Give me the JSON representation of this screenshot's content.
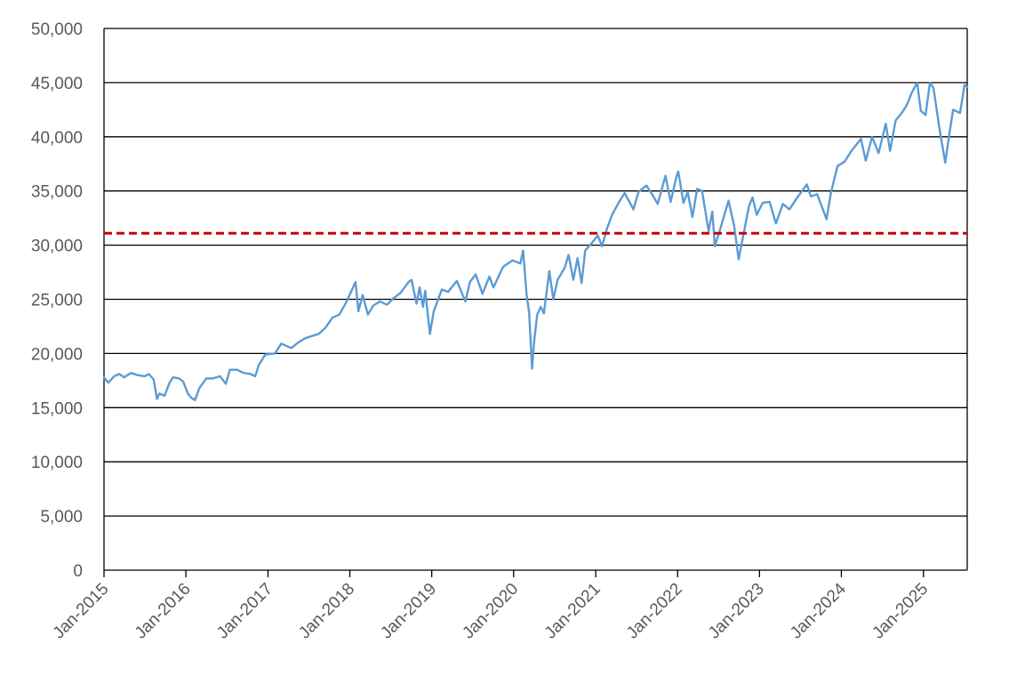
{
  "chart_data": {
    "type": "line",
    "title": "",
    "xlabel": "",
    "ylabel": "",
    "ylim": [
      0,
      50000
    ],
    "yticks": [
      "0",
      "5,000",
      "10,000",
      "15,000",
      "20,000",
      "25,000",
      "30,000",
      "35,000",
      "40,000",
      "45,000",
      "50,000"
    ],
    "xticks": [
      "Jan-2015",
      "Jan-2016",
      "Jan-2017",
      "Jan-2018",
      "Jan-2019",
      "Jan-2020",
      "Jan-2021",
      "Jan-2022",
      "Jan-2023",
      "Jan-2024",
      "Jan-2025"
    ],
    "xlim": [
      "2015-01-01",
      "2025-07-15"
    ],
    "grid": "horizontal",
    "legend": "none",
    "series": [
      {
        "color": "#5b9bd5",
        "style": "solid",
        "points": [
          [
            "2015-01-01",
            17800
          ],
          [
            "2015-01-20",
            17300
          ],
          [
            "2015-02-15",
            17900
          ],
          [
            "2015-03-10",
            18100
          ],
          [
            "2015-04-01",
            17800
          ],
          [
            "2015-05-01",
            18200
          ],
          [
            "2015-06-01",
            18000
          ],
          [
            "2015-07-01",
            17900
          ],
          [
            "2015-07-20",
            18100
          ],
          [
            "2015-08-10",
            17600
          ],
          [
            "2015-08-25",
            15800
          ],
          [
            "2015-09-05",
            16300
          ],
          [
            "2015-09-28",
            16100
          ],
          [
            "2015-10-20",
            17300
          ],
          [
            "2015-11-05",
            17800
          ],
          [
            "2015-12-01",
            17700
          ],
          [
            "2015-12-20",
            17400
          ],
          [
            "2016-01-10",
            16300
          ],
          [
            "2016-01-25",
            15900
          ],
          [
            "2016-02-11",
            15700
          ],
          [
            "2016-03-01",
            16800
          ],
          [
            "2016-04-01",
            17700
          ],
          [
            "2016-05-01",
            17700
          ],
          [
            "2016-06-01",
            17900
          ],
          [
            "2016-06-27",
            17200
          ],
          [
            "2016-07-15",
            18500
          ],
          [
            "2016-08-15",
            18500
          ],
          [
            "2016-09-15",
            18200
          ],
          [
            "2016-10-15",
            18100
          ],
          [
            "2016-11-05",
            17900
          ],
          [
            "2016-11-20",
            18900
          ],
          [
            "2016-12-20",
            19900
          ],
          [
            "2017-02-01",
            20000
          ],
          [
            "2017-03-01",
            20900
          ],
          [
            "2017-04-15",
            20500
          ],
          [
            "2017-05-15",
            21000
          ],
          [
            "2017-06-15",
            21400
          ],
          [
            "2017-07-15",
            21600
          ],
          [
            "2017-08-15",
            21800
          ],
          [
            "2017-09-15",
            22400
          ],
          [
            "2017-10-15",
            23300
          ],
          [
            "2017-11-15",
            23600
          ],
          [
            "2017-12-15",
            24700
          ],
          [
            "2018-01-26",
            26600
          ],
          [
            "2018-02-08",
            23900
          ],
          [
            "2018-02-27",
            25400
          ],
          [
            "2018-03-22",
            23600
          ],
          [
            "2018-04-15",
            24400
          ],
          [
            "2018-05-15",
            24800
          ],
          [
            "2018-06-15",
            24500
          ],
          [
            "2018-07-15",
            25100
          ],
          [
            "2018-08-15",
            25600
          ],
          [
            "2018-09-20",
            26600
          ],
          [
            "2018-10-03",
            26800
          ],
          [
            "2018-10-25",
            24600
          ],
          [
            "2018-11-08",
            26100
          ],
          [
            "2018-11-23",
            24300
          ],
          [
            "2018-12-03",
            25800
          ],
          [
            "2018-12-24",
            21800
          ],
          [
            "2019-01-10",
            23900
          ],
          [
            "2019-02-15",
            25900
          ],
          [
            "2019-03-15",
            25700
          ],
          [
            "2019-04-23",
            26700
          ],
          [
            "2019-05-31",
            24800
          ],
          [
            "2019-06-20",
            26600
          ],
          [
            "2019-07-16",
            27300
          ],
          [
            "2019-08-15",
            25500
          ],
          [
            "2019-09-15",
            27100
          ],
          [
            "2019-10-03",
            26100
          ],
          [
            "2019-11-15",
            28000
          ],
          [
            "2019-12-27",
            28600
          ],
          [
            "2020-01-31",
            28300
          ],
          [
            "2020-02-12",
            29500
          ],
          [
            "2020-02-28",
            25400
          ],
          [
            "2020-03-10",
            23800
          ],
          [
            "2020-03-23",
            18600
          ],
          [
            "2020-04-01",
            21000
          ],
          [
            "2020-04-15",
            23600
          ],
          [
            "2020-05-01",
            24300
          ],
          [
            "2020-05-15",
            23700
          ],
          [
            "2020-06-08",
            27600
          ],
          [
            "2020-06-26",
            25000
          ],
          [
            "2020-07-15",
            26800
          ],
          [
            "2020-08-15",
            27900
          ],
          [
            "2020-09-02",
            29100
          ],
          [
            "2020-09-23",
            26800
          ],
          [
            "2020-10-12",
            28800
          ],
          [
            "2020-10-30",
            26500
          ],
          [
            "2020-11-15",
            29500
          ],
          [
            "2020-12-15",
            30200
          ],
          [
            "2021-01-10",
            30900
          ],
          [
            "2021-01-29",
            29900
          ],
          [
            "2021-02-20",
            31500
          ],
          [
            "2021-03-15",
            32800
          ],
          [
            "2021-04-15",
            34000
          ],
          [
            "2021-05-10",
            34800
          ],
          [
            "2021-06-18",
            33300
          ],
          [
            "2021-07-10",
            34900
          ],
          [
            "2021-08-15",
            35500
          ],
          [
            "2021-09-15",
            34500
          ],
          [
            "2021-10-04",
            33800
          ],
          [
            "2021-11-08",
            36400
          ],
          [
            "2021-12-01",
            34000
          ],
          [
            "2021-12-29",
            36500
          ],
          [
            "2022-01-04",
            36800
          ],
          [
            "2022-01-27",
            33900
          ],
          [
            "2022-02-15",
            34900
          ],
          [
            "2022-03-08",
            32600
          ],
          [
            "2022-03-29",
            35200
          ],
          [
            "2022-04-20",
            35000
          ],
          [
            "2022-05-19",
            31300
          ],
          [
            "2022-06-05",
            33100
          ],
          [
            "2022-06-16",
            29900
          ],
          [
            "2022-07-10",
            31500
          ],
          [
            "2022-08-16",
            34100
          ],
          [
            "2022-09-10",
            31800
          ],
          [
            "2022-09-30",
            28700
          ],
          [
            "2022-10-20",
            30800
          ],
          [
            "2022-11-15",
            33600
          ],
          [
            "2022-12-01",
            34400
          ],
          [
            "2022-12-20",
            32800
          ],
          [
            "2023-01-15",
            33900
          ],
          [
            "2023-02-15",
            34000
          ],
          [
            "2023-03-15",
            32000
          ],
          [
            "2023-04-15",
            33800
          ],
          [
            "2023-05-15",
            33300
          ],
          [
            "2023-06-15",
            34300
          ],
          [
            "2023-07-31",
            35600
          ],
          [
            "2023-08-18",
            34500
          ],
          [
            "2023-09-15",
            34700
          ],
          [
            "2023-10-27",
            32400
          ],
          [
            "2023-11-15",
            34800
          ],
          [
            "2023-12-15",
            37300
          ],
          [
            "2024-01-15",
            37700
          ],
          [
            "2024-02-15",
            38700
          ],
          [
            "2024-03-28",
            39800
          ],
          [
            "2024-04-19",
            37800
          ],
          [
            "2024-05-17",
            40000
          ],
          [
            "2024-06-15",
            38500
          ],
          [
            "2024-07-17",
            41200
          ],
          [
            "2024-08-05",
            38700
          ],
          [
            "2024-08-30",
            41500
          ],
          [
            "2024-09-30",
            42300
          ],
          [
            "2024-10-20",
            43000
          ],
          [
            "2024-11-10",
            44100
          ],
          [
            "2024-12-04",
            45000
          ],
          [
            "2024-12-20",
            42400
          ],
          [
            "2025-01-10",
            42000
          ],
          [
            "2025-01-30",
            45000
          ],
          [
            "2025-02-15",
            44500
          ],
          [
            "2025-03-13",
            40800
          ],
          [
            "2025-04-08",
            37600
          ],
          [
            "2025-04-25",
            40100
          ],
          [
            "2025-05-13",
            42500
          ],
          [
            "2025-06-13",
            42200
          ],
          [
            "2025-07-03",
            44800
          ],
          [
            "2025-07-15",
            44600
          ]
        ]
      },
      {
        "color": "#cc0000",
        "style": "dashed",
        "points": [
          [
            "2015-01-01",
            31100
          ],
          [
            "2025-07-15",
            31100
          ]
        ]
      }
    ]
  }
}
